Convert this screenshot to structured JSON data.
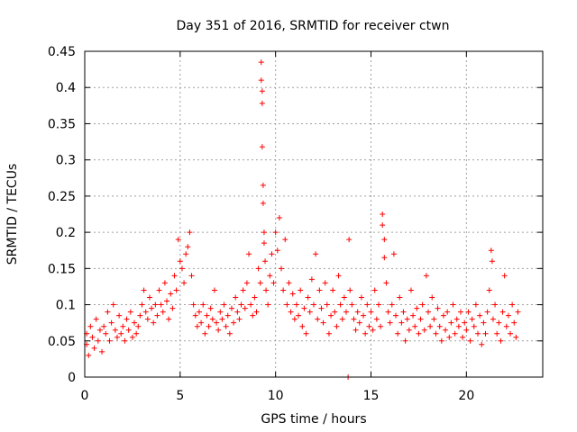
{
  "chart_data": {
    "type": "scatter",
    "title": "Day 351 of 2016, SRMTID for receiver ctwn",
    "xlabel": "GPS time / hours",
    "ylabel": "SRMTID / TECUs",
    "xlim": [
      0,
      24
    ],
    "ylim": [
      0,
      0.45
    ],
    "xticks": [
      0,
      5,
      10,
      15,
      20
    ],
    "xtick_labels": [
      "0",
      "5",
      "10",
      "15",
      "20"
    ],
    "yticks": [
      0,
      0.05,
      0.1,
      0.15,
      0.2,
      0.25,
      0.3,
      0.35,
      0.4,
      0.45
    ],
    "ytick_labels": [
      "0",
      "0.05",
      "0.1",
      "0.15",
      "0.2",
      "0.25",
      "0.3",
      "0.35",
      "0.4",
      "0.45"
    ],
    "grid": true,
    "marker": "plus",
    "color": "#ff0000",
    "series": [
      {
        "name": "SRMTID",
        "points": [
          [
            0.1,
            0.06
          ],
          [
            0.1,
            0.045
          ],
          [
            0.2,
            0.03
          ],
          [
            0.3,
            0.07
          ],
          [
            0.4,
            0.055
          ],
          [
            0.5,
            0.04
          ],
          [
            0.6,
            0.08
          ],
          [
            0.7,
            0.05
          ],
          [
            0.8,
            0.065
          ],
          [
            0.9,
            0.035
          ],
          [
            1.0,
            0.07
          ],
          [
            1.1,
            0.06
          ],
          [
            1.2,
            0.09
          ],
          [
            1.3,
            0.05
          ],
          [
            1.4,
            0.075
          ],
          [
            1.5,
            0.1
          ],
          [
            1.6,
            0.065
          ],
          [
            1.7,
            0.055
          ],
          [
            1.8,
            0.085
          ],
          [
            1.9,
            0.06
          ],
          [
            2.0,
            0.07
          ],
          [
            2.1,
            0.05
          ],
          [
            2.2,
            0.08
          ],
          [
            2.3,
            0.065
          ],
          [
            2.4,
            0.09
          ],
          [
            2.5,
            0.055
          ],
          [
            2.6,
            0.075
          ],
          [
            2.7,
            0.06
          ],
          [
            2.8,
            0.07
          ],
          [
            2.9,
            0.085
          ],
          [
            3.0,
            0.1
          ],
          [
            3.1,
            0.12
          ],
          [
            3.2,
            0.09
          ],
          [
            3.3,
            0.08
          ],
          [
            3.4,
            0.11
          ],
          [
            3.5,
            0.095
          ],
          [
            3.6,
            0.075
          ],
          [
            3.7,
            0.1
          ],
          [
            3.8,
            0.085
          ],
          [
            3.9,
            0.12
          ],
          [
            4.0,
            0.1
          ],
          [
            4.1,
            0.09
          ],
          [
            4.2,
            0.13
          ],
          [
            4.3,
            0.105
          ],
          [
            4.4,
            0.08
          ],
          [
            4.5,
            0.115
          ],
          [
            4.6,
            0.095
          ],
          [
            4.7,
            0.14
          ],
          [
            4.8,
            0.12
          ],
          [
            4.9,
            0.19
          ],
          [
            5.0,
            0.16
          ],
          [
            5.1,
            0.15
          ],
          [
            5.2,
            0.13
          ],
          [
            5.3,
            0.17
          ],
          [
            5.4,
            0.18
          ],
          [
            5.5,
            0.2
          ],
          [
            5.6,
            0.14
          ],
          [
            5.7,
            0.1
          ],
          [
            5.8,
            0.085
          ],
          [
            5.9,
            0.07
          ],
          [
            6.0,
            0.09
          ],
          [
            6.1,
            0.075
          ],
          [
            6.2,
            0.1
          ],
          [
            6.3,
            0.06
          ],
          [
            6.4,
            0.085
          ],
          [
            6.5,
            0.07
          ],
          [
            6.6,
            0.095
          ],
          [
            6.7,
            0.08
          ],
          [
            6.8,
            0.12
          ],
          [
            6.9,
            0.075
          ],
          [
            7.0,
            0.065
          ],
          [
            7.1,
            0.09
          ],
          [
            7.2,
            0.08
          ],
          [
            7.3,
            0.1
          ],
          [
            7.4,
            0.07
          ],
          [
            7.5,
            0.085
          ],
          [
            7.6,
            0.06
          ],
          [
            7.7,
            0.095
          ],
          [
            7.8,
            0.075
          ],
          [
            7.9,
            0.11
          ],
          [
            8.0,
            0.09
          ],
          [
            8.1,
            0.08
          ],
          [
            8.2,
            0.1
          ],
          [
            8.3,
            0.12
          ],
          [
            8.4,
            0.095
          ],
          [
            8.5,
            0.13
          ],
          [
            8.6,
            0.17
          ],
          [
            8.7,
            0.1
          ],
          [
            8.8,
            0.085
          ],
          [
            8.9,
            0.11
          ],
          [
            9.0,
            0.09
          ],
          [
            9.1,
            0.15
          ],
          [
            9.2,
            0.13
          ],
          [
            9.25,
            0.435
          ],
          [
            9.25,
            0.41
          ],
          [
            9.3,
            0.395
          ],
          [
            9.3,
            0.378
          ],
          [
            9.3,
            0.318
          ],
          [
            9.35,
            0.265
          ],
          [
            9.35,
            0.24
          ],
          [
            9.4,
            0.2
          ],
          [
            9.4,
            0.185
          ],
          [
            9.45,
            0.16
          ],
          [
            9.5,
            0.12
          ],
          [
            9.6,
            0.1
          ],
          [
            9.7,
            0.14
          ],
          [
            9.8,
            0.17
          ],
          [
            9.9,
            0.13
          ],
          [
            10.0,
            0.2
          ],
          [
            10.1,
            0.175
          ],
          [
            10.2,
            0.22
          ],
          [
            10.3,
            0.15
          ],
          [
            10.4,
            0.12
          ],
          [
            10.5,
            0.19
          ],
          [
            10.6,
            0.1
          ],
          [
            10.7,
            0.13
          ],
          [
            10.8,
            0.09
          ],
          [
            10.9,
            0.115
          ],
          [
            11.0,
            0.08
          ],
          [
            11.1,
            0.1
          ],
          [
            11.2,
            0.085
          ],
          [
            11.3,
            0.12
          ],
          [
            11.4,
            0.07
          ],
          [
            11.5,
            0.095
          ],
          [
            11.6,
            0.06
          ],
          [
            11.7,
            0.11
          ],
          [
            11.8,
            0.09
          ],
          [
            11.9,
            0.135
          ],
          [
            12.0,
            0.1
          ],
          [
            12.1,
            0.17
          ],
          [
            12.2,
            0.08
          ],
          [
            12.3,
            0.12
          ],
          [
            12.4,
            0.095
          ],
          [
            12.5,
            0.075
          ],
          [
            12.6,
            0.13
          ],
          [
            12.7,
            0.1
          ],
          [
            12.8,
            0.06
          ],
          [
            12.9,
            0.085
          ],
          [
            13.0,
            0.12
          ],
          [
            13.1,
            0.09
          ],
          [
            13.2,
            0.07
          ],
          [
            13.3,
            0.14
          ],
          [
            13.4,
            0.1
          ],
          [
            13.5,
            0.08
          ],
          [
            13.6,
            0.11
          ],
          [
            13.7,
            0.09
          ],
          [
            13.8,
            0.0
          ],
          [
            13.85,
            0.19
          ],
          [
            13.9,
            0.12
          ],
          [
            14.0,
            0.1
          ],
          [
            14.1,
            0.08
          ],
          [
            14.2,
            0.065
          ],
          [
            14.3,
            0.09
          ],
          [
            14.4,
            0.075
          ],
          [
            14.5,
            0.11
          ],
          [
            14.6,
            0.085
          ],
          [
            14.7,
            0.06
          ],
          [
            14.8,
            0.1
          ],
          [
            14.9,
            0.07
          ],
          [
            15.0,
            0.09
          ],
          [
            15.1,
            0.065
          ],
          [
            15.2,
            0.12
          ],
          [
            15.3,
            0.08
          ],
          [
            15.4,
            0.1
          ],
          [
            15.5,
            0.07
          ],
          [
            15.6,
            0.225
          ],
          [
            15.6,
            0.21
          ],
          [
            15.7,
            0.19
          ],
          [
            15.7,
            0.165
          ],
          [
            15.8,
            0.13
          ],
          [
            15.9,
            0.09
          ],
          [
            16.0,
            0.075
          ],
          [
            16.1,
            0.1
          ],
          [
            16.2,
            0.17
          ],
          [
            16.3,
            0.085
          ],
          [
            16.4,
            0.06
          ],
          [
            16.5,
            0.11
          ],
          [
            16.6,
            0.075
          ],
          [
            16.7,
            0.09
          ],
          [
            16.8,
            0.05
          ],
          [
            16.9,
            0.08
          ],
          [
            17.0,
            0.065
          ],
          [
            17.1,
            0.12
          ],
          [
            17.2,
            0.085
          ],
          [
            17.3,
            0.07
          ],
          [
            17.4,
            0.095
          ],
          [
            17.5,
            0.06
          ],
          [
            17.6,
            0.08
          ],
          [
            17.7,
            0.1
          ],
          [
            17.8,
            0.065
          ],
          [
            17.9,
            0.14
          ],
          [
            18.0,
            0.09
          ],
          [
            18.1,
            0.07
          ],
          [
            18.2,
            0.11
          ],
          [
            18.3,
            0.08
          ],
          [
            18.4,
            0.06
          ],
          [
            18.5,
            0.095
          ],
          [
            18.6,
            0.07
          ],
          [
            18.7,
            0.05
          ],
          [
            18.8,
            0.085
          ],
          [
            18.9,
            0.065
          ],
          [
            19.0,
            0.09
          ],
          [
            19.1,
            0.055
          ],
          [
            19.2,
            0.075
          ],
          [
            19.3,
            0.1
          ],
          [
            19.4,
            0.06
          ],
          [
            19.5,
            0.08
          ],
          [
            19.6,
            0.07
          ],
          [
            19.7,
            0.09
          ],
          [
            19.8,
            0.055
          ],
          [
            19.9,
            0.075
          ],
          [
            20.0,
            0.065
          ],
          [
            20.1,
            0.09
          ],
          [
            20.2,
            0.05
          ],
          [
            20.3,
            0.08
          ],
          [
            20.4,
            0.07
          ],
          [
            20.5,
            0.1
          ],
          [
            20.6,
            0.06
          ],
          [
            20.7,
            0.085
          ],
          [
            20.8,
            0.045
          ],
          [
            20.9,
            0.075
          ],
          [
            21.0,
            0.06
          ],
          [
            21.1,
            0.09
          ],
          [
            21.2,
            0.12
          ],
          [
            21.3,
            0.175
          ],
          [
            21.35,
            0.16
          ],
          [
            21.4,
            0.08
          ],
          [
            21.5,
            0.1
          ],
          [
            21.6,
            0.06
          ],
          [
            21.7,
            0.075
          ],
          [
            21.8,
            0.05
          ],
          [
            21.9,
            0.09
          ],
          [
            22.0,
            0.14
          ],
          [
            22.1,
            0.07
          ],
          [
            22.2,
            0.085
          ],
          [
            22.3,
            0.06
          ],
          [
            22.4,
            0.1
          ],
          [
            22.5,
            0.075
          ],
          [
            22.6,
            0.055
          ],
          [
            22.7,
            0.09
          ]
        ]
      }
    ]
  }
}
